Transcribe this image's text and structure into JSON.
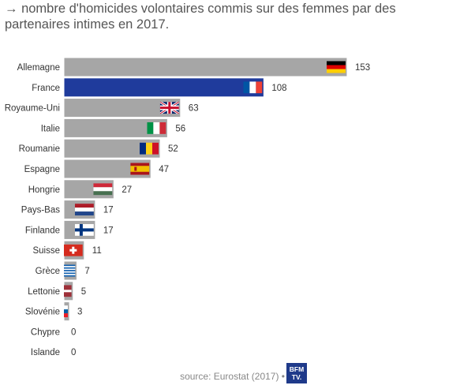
{
  "subtitle": "→ nombre d'homicides volontaires commis sur des femmes par des partenaires intimes en 2017.",
  "source": "source: Eurostat (2017) •",
  "logo": {
    "line1": "BFM",
    "line2": "TV."
  },
  "colors": {
    "bar": "#a6a6a6",
    "highlight": "#1f3b9c",
    "bar_border": "#ffffff"
  },
  "chart_data": {
    "type": "bar",
    "orientation": "horizontal",
    "categories": [
      "Allemagne",
      "France",
      "Royaume-Uni",
      "Italie",
      "Roumanie",
      "Espagne",
      "Hongrie",
      "Pays-Bas",
      "Finlande",
      "Suisse",
      "Grèce",
      "Lettonie",
      "Slovénie",
      "Chypre",
      "Islande"
    ],
    "values": [
      153,
      108,
      63,
      56,
      52,
      47,
      27,
      17,
      17,
      11,
      7,
      5,
      3,
      0,
      0
    ],
    "highlight": "France",
    "flags": [
      "de",
      "fr",
      "gb",
      "it",
      "ro",
      "es",
      "hu",
      "nl",
      "fi",
      "ch",
      "gr",
      "lv",
      "si",
      "cy",
      "is"
    ],
    "title": "",
    "xlabel": "",
    "ylabel": "",
    "data_labels": true,
    "grid": false
  }
}
